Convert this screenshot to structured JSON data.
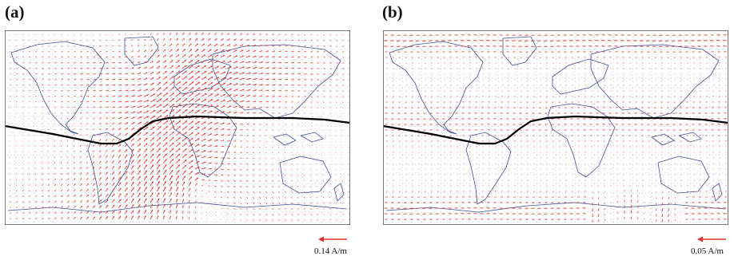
{
  "panels": [
    {
      "label": "(a)",
      "scale_text": "0.14 A/m",
      "arrow_color": "#e0322c",
      "coast_color": "#3b4f9a",
      "equator_color": "#000000",
      "grid_color": "#9aa3c8"
    },
    {
      "label": "(b)",
      "scale_text": "0.05 A/m",
      "arrow_color": "#e0322c",
      "coast_color": "#3b4f9a",
      "equator_color": "#000000",
      "grid_color": "#9aa3c8"
    }
  ]
}
